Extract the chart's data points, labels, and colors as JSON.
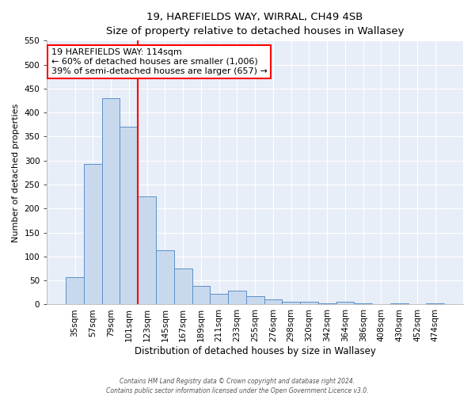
{
  "title": "19, HAREFIELDS WAY, WIRRAL, CH49 4SB",
  "subtitle": "Size of property relative to detached houses in Wallasey",
  "xlabel": "Distribution of detached houses by size in Wallasey",
  "ylabel": "Number of detached properties",
  "bin_labels": [
    "35sqm",
    "57sqm",
    "79sqm",
    "101sqm",
    "123sqm",
    "145sqm",
    "167sqm",
    "189sqm",
    "211sqm",
    "233sqm",
    "255sqm",
    "276sqm",
    "298sqm",
    "320sqm",
    "342sqm",
    "364sqm",
    "386sqm",
    "408sqm",
    "430sqm",
    "452sqm",
    "474sqm"
  ],
  "bar_heights": [
    57,
    293,
    430,
    370,
    226,
    113,
    75,
    38,
    22,
    29,
    17,
    10,
    5,
    5,
    3,
    5,
    3,
    0,
    3,
    0,
    3
  ],
  "bar_color": "#c9d9ed",
  "bar_edge_color": "#5b8fc9",
  "vline_x_index": 3,
  "vline_color": "red",
  "annotation_text": "19 HAREFIELDS WAY: 114sqm\n← 60% of detached houses are smaller (1,006)\n39% of semi-detached houses are larger (657) →",
  "annotation_box_color": "white",
  "annotation_box_edge_color": "red",
  "ylim": [
    0,
    550
  ],
  "yticks": [
    0,
    50,
    100,
    150,
    200,
    250,
    300,
    350,
    400,
    450,
    500,
    550
  ],
  "footer": "Contains HM Land Registry data © Crown copyright and database right 2024.\nContains public sector information licensed under the Open Government Licence v3.0.",
  "plot_bg_color": "#e8eef7",
  "title_fontsize": 9.5,
  "subtitle_fontsize": 9.0,
  "xlabel_fontsize": 8.5,
  "ylabel_fontsize": 8.0,
  "tick_fontsize": 7.5,
  "annotation_fontsize": 8.0,
  "footer_fontsize": 5.5
}
